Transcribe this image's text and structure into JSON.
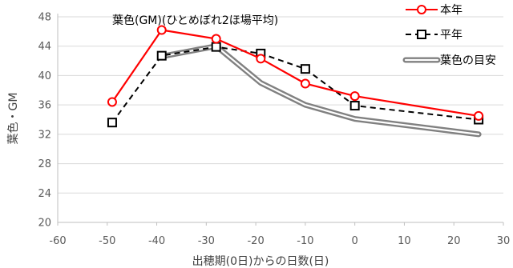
{
  "chart_data": {
    "type": "line",
    "title": "葉色(GM)(ひとめぼれ2ほ場平均)",
    "xlabel": "出穂期(0日)からの日数(日)",
    "ylabel": "葉色・GM",
    "xlim": [
      -60,
      30
    ],
    "ylim": [
      20,
      48
    ],
    "xticks": [
      "-60",
      "-50",
      "-40",
      "-30",
      "-20",
      "-10",
      "0",
      "10",
      "20",
      "30"
    ],
    "yticks": [
      "20",
      "24",
      "28",
      "32",
      "36",
      "40",
      "44",
      "48"
    ],
    "grid": "horizontal",
    "legend_position": "top-right",
    "series": [
      {
        "name": "本年",
        "color": "#ff0000",
        "marker": "circle",
        "x": [
          -49,
          -39,
          -28,
          -19,
          -10,
          0,
          25
        ],
        "y": [
          36.4,
          46.2,
          45.0,
          42.3,
          38.9,
          37.2,
          34.5
        ]
      },
      {
        "name": "平年",
        "color": "#000000",
        "marker": "square",
        "dash": true,
        "x": [
          -49,
          -39,
          -28,
          -19,
          -10,
          0,
          25
        ],
        "y": [
          33.6,
          42.7,
          43.9,
          43.0,
          40.9,
          35.9,
          34.0
        ]
      },
      {
        "name": "葉色の目安",
        "color": "#808080",
        "double": true,
        "x": [
          -39,
          -28,
          -19,
          -10,
          0,
          25
        ],
        "y": [
          42.6,
          44.0,
          39.0,
          36.0,
          34.1,
          32.0
        ]
      }
    ]
  }
}
